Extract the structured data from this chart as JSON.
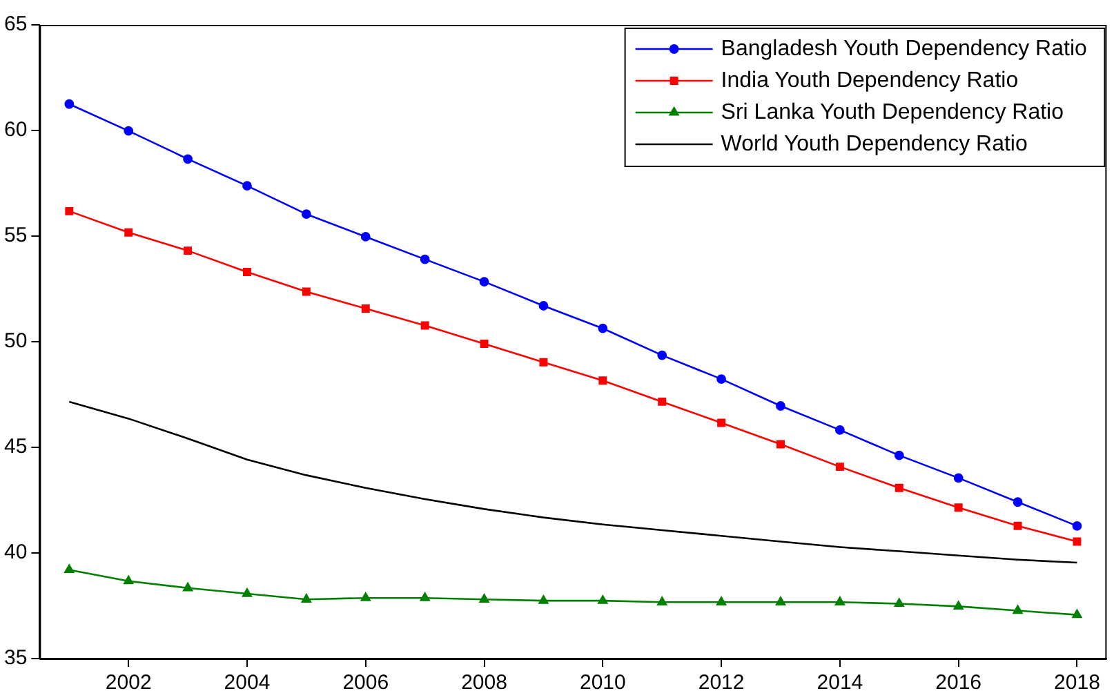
{
  "chart_data": {
    "type": "line",
    "x": [
      2001,
      2002,
      2003,
      2004,
      2005,
      2006,
      2007,
      2008,
      2009,
      2010,
      2011,
      2012,
      2013,
      2014,
      2015,
      2016,
      2017,
      2018
    ],
    "xlim": [
      2000.5,
      2018.5
    ],
    "xticks": [
      2002,
      2004,
      2006,
      2008,
      2010,
      2012,
      2014,
      2016,
      2018
    ],
    "ylim": [
      35,
      65
    ],
    "yticks": [
      35,
      40,
      45,
      50,
      55,
      60,
      65
    ],
    "grid": false,
    "legend": "top right",
    "line_style": "solid",
    "series": [
      {
        "name": "Bangladesh Youth Dependency Ratio",
        "color": "#0000ff",
        "marker": "circle",
        "values": [
          61.25,
          59.98,
          58.65,
          57.38,
          56.04,
          54.97,
          53.9,
          52.84,
          51.7,
          50.63,
          49.36,
          48.23,
          46.96,
          45.82,
          44.62,
          43.55,
          42.41,
          41.28
        ]
      },
      {
        "name": "India Youth Dependency Ratio",
        "color": "#ff0000",
        "marker": "square",
        "values": [
          56.18,
          55.17,
          54.31,
          53.3,
          52.37,
          51.57,
          50.77,
          49.9,
          49.03,
          48.16,
          47.16,
          46.16,
          45.15,
          44.08,
          43.08,
          42.15,
          41.28,
          40.54
        ]
      },
      {
        "name": "Sri Lanka Youth Dependency Ratio",
        "color": "#008000",
        "marker": "triangle",
        "values": [
          39.2,
          38.67,
          38.34,
          38.07,
          37.8,
          37.87,
          37.87,
          37.8,
          37.74,
          37.74,
          37.67,
          37.67,
          37.67,
          37.67,
          37.6,
          37.47,
          37.27,
          37.07
        ]
      },
      {
        "name": "World Youth Dependency Ratio",
        "color": "#000000",
        "marker": "none",
        "values": [
          47.16,
          46.36,
          45.42,
          44.42,
          43.68,
          43.08,
          42.55,
          42.08,
          41.68,
          41.35,
          41.08,
          40.81,
          40.54,
          40.28,
          40.08,
          39.88,
          39.68,
          39.54
        ]
      }
    ]
  }
}
